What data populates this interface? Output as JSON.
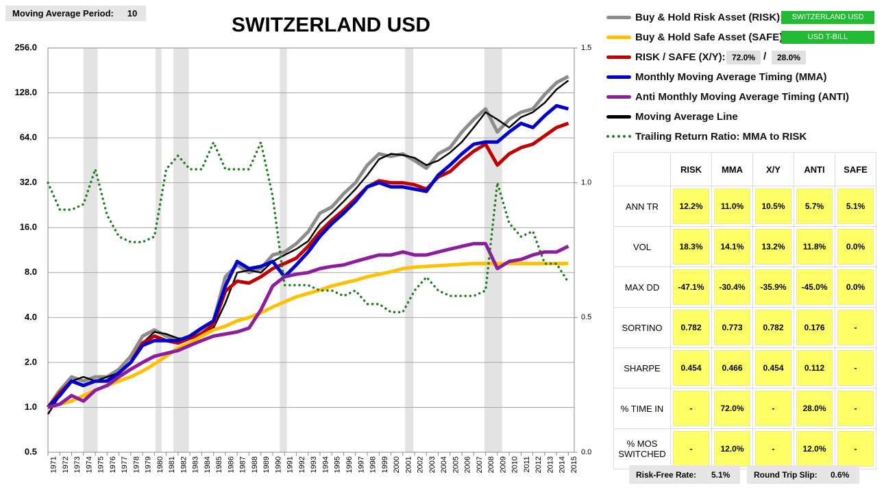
{
  "ma_setting": {
    "label": "Moving Average Period:",
    "value": 10
  },
  "chart_data": {
    "type": "line",
    "title": "SWITZERLAND USD",
    "log_y": true,
    "grid": true,
    "x": [
      1971,
      1972,
      1973,
      1974,
      1975,
      1976,
      1977,
      1978,
      1979,
      1980,
      1981,
      1982,
      1983,
      1984,
      1985,
      1986,
      1987,
      1988,
      1989,
      1990,
      1991,
      1992,
      1993,
      1994,
      1995,
      1996,
      1997,
      1998,
      1999,
      2000,
      2001,
      2002,
      2003,
      2004,
      2005,
      2006,
      2007,
      2008,
      2009,
      2010,
      2011,
      2012,
      2013,
      2014,
      2015
    ],
    "xlim": [
      1971,
      2015.5
    ],
    "xticks": [
      1971,
      1972,
      1973,
      1974,
      1975,
      1976,
      1977,
      1978,
      1979,
      1980,
      1981,
      1982,
      1983,
      1984,
      1985,
      1986,
      1987,
      1988,
      1989,
      1990,
      1991,
      1992,
      1993,
      1994,
      1995,
      1996,
      1997,
      1998,
      1999,
      2000,
      2001,
      2002,
      2003,
      2004,
      2005,
      2006,
      2007,
      2008,
      2009,
      2010,
      2011,
      2012,
      2013,
      2014,
      2015
    ],
    "ylim": [
      0.5,
      256
    ],
    "yticks": [
      0.5,
      {
        "value": 1,
        "label": "1.0"
      },
      {
        "value": 2,
        "label": "2.0"
      },
      {
        "value": 4,
        "label": "4.0"
      },
      {
        "value": 8,
        "label": "8.0"
      },
      {
        "value": 16,
        "label": "16.0"
      },
      {
        "value": 32,
        "label": "32.0"
      },
      {
        "value": 64,
        "label": "64.0"
      },
      {
        "value": 128,
        "label": "128.0"
      },
      {
        "value": 256,
        "label": "256.0"
      }
    ],
    "y2lim": [
      0,
      1.5
    ],
    "y2ticks": [
      {
        "value": 0,
        "label": "0.0"
      },
      0.5,
      {
        "value": 1,
        "label": "1.0"
      },
      1.5
    ],
    "shaded_periods": [
      [
        1974.0,
        1975.2
      ],
      [
        1980.1,
        1980.6
      ],
      [
        1981.6,
        1982.9
      ],
      [
        1990.6,
        1991.2
      ],
      [
        2001.2,
        2001.9
      ],
      [
        2007.9,
        2009.4
      ]
    ],
    "shade_color": "#e3e3e3",
    "series": [
      {
        "name": "Buy & Hold Risk Asset (RISK):",
        "color": "#8c8c8c",
        "width": 5,
        "values": [
          1.0,
          1.3,
          1.6,
          1.5,
          1.6,
          1.6,
          1.8,
          2.2,
          3.0,
          3.3,
          3.0,
          2.8,
          3.0,
          3.2,
          3.8,
          7.5,
          9.0,
          8.0,
          8.5,
          10.5,
          11,
          12.5,
          15,
          20,
          22,
          27,
          32,
          42,
          50,
          48,
          50,
          45,
          40,
          50,
          55,
          70,
          85,
          100,
          70,
          85,
          95,
          100,
          125,
          150,
          165
        ]
      },
      {
        "name": "Buy & Hold Safe Asset (SAFE):",
        "color": "#ffc000",
        "width": 5,
        "values": [
          1.0,
          1.05,
          1.1,
          1.2,
          1.3,
          1.4,
          1.5,
          1.6,
          1.75,
          1.95,
          2.2,
          2.5,
          2.7,
          3.0,
          3.3,
          3.5,
          3.8,
          4.0,
          4.3,
          4.7,
          5.1,
          5.5,
          5.8,
          6.1,
          6.5,
          6.8,
          7.1,
          7.5,
          7.8,
          8.1,
          8.5,
          8.7,
          8.8,
          8.9,
          9.0,
          9.1,
          9.2,
          9.2,
          9.2,
          9.2,
          9.2,
          9.2,
          9.2,
          9.2,
          9.2
        ]
      },
      {
        "name": "RISK / SAFE (X/Y):",
        "color": "#c00000",
        "width": 5,
        "values": [
          1.0,
          1.25,
          1.5,
          1.4,
          1.5,
          1.5,
          1.7,
          2.0,
          2.7,
          3.0,
          2.8,
          2.7,
          2.9,
          3.1,
          3.6,
          6.0,
          7.0,
          6.8,
          7.5,
          8.5,
          9.2,
          10,
          12,
          15,
          18,
          21,
          25,
          30,
          33,
          32,
          32,
          31,
          29,
          35,
          38,
          45,
          52,
          58,
          42,
          50,
          55,
          58,
          66,
          75,
          80
        ]
      },
      {
        "name": "Monthly Moving Average Timing (MMA)",
        "color": "#0000cc",
        "width": 5,
        "values": [
          1.0,
          1.2,
          1.5,
          1.4,
          1.5,
          1.5,
          1.7,
          2.0,
          2.6,
          2.8,
          2.8,
          2.8,
          3.0,
          3.4,
          3.8,
          6.5,
          9.5,
          8.5,
          8.8,
          9.5,
          7.5,
          9,
          11,
          14,
          17,
          20,
          24,
          30,
          32,
          30,
          30,
          29,
          28,
          36,
          42,
          50,
          58,
          60,
          60,
          70,
          80,
          75,
          90,
          105,
          100
        ]
      },
      {
        "name": "Anti Monthly Moving Average Timing (ANTI)",
        "color": "#8e1c9e",
        "width": 5,
        "values": [
          1.0,
          1.05,
          1.2,
          1.1,
          1.3,
          1.4,
          1.6,
          1.8,
          2.0,
          2.2,
          2.3,
          2.4,
          2.6,
          2.8,
          3.0,
          3.1,
          3.2,
          3.4,
          4.5,
          6.5,
          7.5,
          7.8,
          8.0,
          8.5,
          8.8,
          9.0,
          9.5,
          10,
          10.5,
          10.5,
          11.0,
          10.5,
          10.5,
          11,
          11.5,
          12,
          12.5,
          12.5,
          8.5,
          9.5,
          9.8,
          10.5,
          11,
          11,
          12
        ]
      },
      {
        "name": "Moving Average Line",
        "color": "#000000",
        "width": 2.5,
        "values": [
          0.9,
          1.2,
          1.5,
          1.6,
          1.5,
          1.6,
          1.7,
          2.0,
          2.7,
          3.2,
          3.1,
          2.9,
          2.9,
          3.1,
          3.4,
          5.0,
          8.0,
          8.3,
          8.0,
          9.5,
          10.5,
          11.5,
          13,
          17,
          20,
          24,
          29,
          36,
          46,
          50,
          49,
          47,
          42,
          45,
          51,
          60,
          75,
          95,
          85,
          75,
          88,
          95,
          110,
          135,
          155
        ]
      },
      {
        "name": "Trailing Return Ratio: MMA to RISK",
        "color": "#1e7b1e",
        "width": 3.5,
        "style": "dotted",
        "axis": "y2",
        "values": [
          1.0,
          0.9,
          0.9,
          0.92,
          1.05,
          0.88,
          0.8,
          0.78,
          0.78,
          0.8,
          1.05,
          1.1,
          1.05,
          1.05,
          1.15,
          1.05,
          1.05,
          1.05,
          1.15,
          0.95,
          0.62,
          0.62,
          0.62,
          0.6,
          0.6,
          0.58,
          0.6,
          0.55,
          0.55,
          0.52,
          0.52,
          0.6,
          0.65,
          0.6,
          0.58,
          0.58,
          0.58,
          0.6,
          1.0,
          0.85,
          0.8,
          0.82,
          0.7,
          0.7,
          0.63
        ]
      }
    ]
  },
  "legend_extras": {
    "risk_asset": "SWITZERLAND USD",
    "safe_asset": "USD T-BILL",
    "risk_weight": "72.0%",
    "separator": "/",
    "safe_weight": "28.0%"
  },
  "stats_table": {
    "columns": [
      "RISK",
      "MMA",
      "X/Y",
      "ANTI",
      "SAFE"
    ],
    "rows": [
      {
        "label": "ANN TR",
        "cells": [
          "12.2%",
          "11.0%",
          "10.5%",
          "5.7%",
          "5.1%"
        ]
      },
      {
        "label": "VOL",
        "cells": [
          "18.3%",
          "14.1%",
          "13.2%",
          "11.8%",
          "0.0%"
        ]
      },
      {
        "label": "MAX DD",
        "cells": [
          "-47.1%",
          "-30.4%",
          "-35.9%",
          "-45.0%",
          "0.0%"
        ]
      },
      {
        "label": "SORTINO",
        "cells": [
          "0.782",
          "0.773",
          "0.782",
          "0.176",
          "-"
        ]
      },
      {
        "label": "SHARPE",
        "cells": [
          "0.454",
          "0.466",
          "0.454",
          "0.112",
          "-"
        ]
      },
      {
        "label": "% TIME IN",
        "cells": [
          "-",
          "72.0%",
          "-",
          "28.0%",
          "-"
        ]
      },
      {
        "label": "% MOS SWITCHED",
        "cells": [
          "-",
          "12.0%",
          "-",
          "12.0%",
          "-"
        ]
      }
    ]
  },
  "footer": {
    "risk_free_label": "Risk-Free Rate:",
    "risk_free_value": "5.1%",
    "slip_label": "Round Trip Slip:",
    "slip_value": "0.6%"
  }
}
